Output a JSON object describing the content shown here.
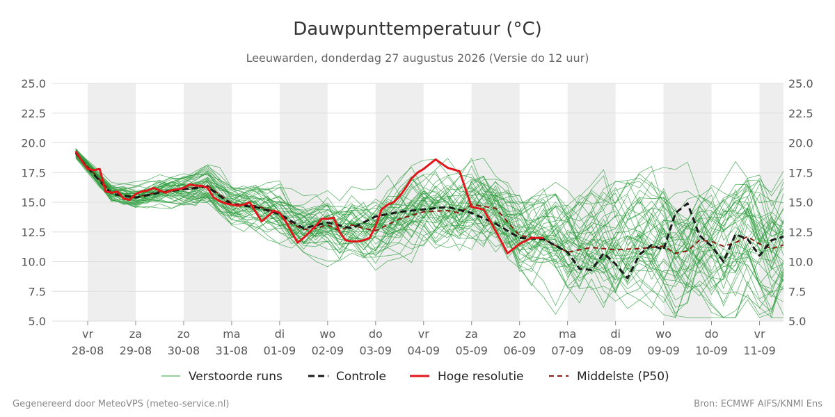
{
  "chart_data": {
    "type": "line",
    "title": "Dauwpunttemperatuur (°C)",
    "subtitle": "Leeuwarden, donderdag 27 augustus 2026 (Versie do 12 uur)",
    "ylim": [
      5.0,
      25.0
    ],
    "y_ticks": [
      "25.0",
      "22.5",
      "20.0",
      "17.5",
      "15.0",
      "12.5",
      "10.0",
      "7.5",
      "5.0"
    ],
    "x_range_days": [
      -0.74,
      14.5
    ],
    "x_ticks": [
      {
        "day": "vr",
        "date": "28-08"
      },
      {
        "day": "za",
        "date": "29-08"
      },
      {
        "day": "zo",
        "date": "30-08"
      },
      {
        "day": "ma",
        "date": "31-08"
      },
      {
        "day": "di",
        "date": "01-09"
      },
      {
        "day": "wo",
        "date": "02-09"
      },
      {
        "day": "do",
        "date": "03-09"
      },
      {
        "day": "vr",
        "date": "04-09"
      },
      {
        "day": "za",
        "date": "05-09"
      },
      {
        "day": "zo",
        "date": "06-09"
      },
      {
        "day": "ma",
        "date": "07-09"
      },
      {
        "day": "di",
        "date": "08-09"
      },
      {
        "day": "wo",
        "date": "09-09"
      },
      {
        "day": "do",
        "date": "10-09"
      },
      {
        "day": "vr",
        "date": "11-09"
      }
    ],
    "weekend_bands": [
      [
        0,
        1
      ],
      [
        2,
        3
      ],
      [
        4,
        5
      ],
      [
        6,
        7
      ],
      [
        8,
        9
      ],
      [
        10,
        11
      ],
      [
        12,
        13
      ],
      [
        14,
        15
      ]
    ],
    "grid": true,
    "legend_position": "bottom",
    "legend": [
      "Verstoorde runs",
      "Controle",
      "Hoge resolutie",
      "Middelste (P50)"
    ],
    "colors": {
      "ensemble": "#2e9e3e",
      "control": "#1a1a1a",
      "high_res": "#e0161b",
      "median": "#8b1a12",
      "band": "#eeeeee",
      "grid": "#dddddd"
    },
    "ensemble_member_count": 50,
    "series": [
      {
        "name": "Hoge resolutie",
        "x": [
          -0.25,
          -0.125,
          0,
          0.125,
          0.25,
          0.375,
          0.5,
          0.625,
          0.75,
          0.875,
          1,
          1.125,
          1.25,
          1.375,
          1.5,
          1.625,
          1.75,
          1.875,
          2,
          2.125,
          2.25,
          2.375,
          2.5,
          2.625,
          2.75,
          2.875,
          3,
          3.125,
          3.25,
          3.375,
          3.5,
          3.625,
          3.75,
          3.875,
          4,
          4.125,
          4.25,
          4.375,
          4.5,
          4.625,
          4.75,
          4.875,
          5,
          5.125,
          5.25,
          5.375,
          5.5,
          5.625,
          5.75,
          5.875,
          6,
          6.125,
          6.25,
          6.375,
          6.5,
          6.625,
          6.75,
          6.875,
          7,
          7.25,
          7.5,
          7.75,
          8,
          8.25,
          8.5,
          8.75,
          9,
          9.25,
          9.5
        ],
        "values": [
          19.3,
          18.5,
          17.8,
          17.7,
          17.8,
          15.9,
          15.8,
          15.9,
          15.3,
          15.2,
          15.7,
          15.9,
          16.0,
          16.2,
          16.0,
          15.8,
          16.0,
          16.1,
          16.2,
          16.5,
          16.4,
          16.4,
          16.2,
          15.4,
          15.1,
          14.9,
          14.8,
          14.7,
          14.8,
          15.0,
          14.2,
          13.4,
          13.8,
          14.3,
          14.1,
          13.4,
          12.5,
          11.6,
          12.0,
          12.5,
          13.0,
          13.6,
          13.6,
          13.7,
          12.5,
          11.8,
          11.7,
          11.7,
          11.8,
          12.0,
          13.0,
          14.4,
          14.8,
          15.0,
          15.5,
          16.2,
          17.0,
          17.5,
          17.8,
          18.6,
          17.9,
          17.6,
          14.6,
          14.4,
          12.6,
          10.7,
          11.5,
          12.0,
          12.0
        ]
      },
      {
        "name": "Controle",
        "x": [
          -0.25,
          0,
          0.5,
          1,
          1.5,
          2,
          2.5,
          3,
          3.5,
          4,
          4.5,
          5,
          5.5,
          6,
          6.5,
          7,
          7.5,
          8,
          8.5,
          9,
          9.5,
          10,
          10.25,
          10.5,
          10.75,
          11,
          11.25,
          11.5,
          11.75,
          12,
          12.25,
          12.5,
          12.75,
          13,
          13.25,
          13.5,
          13.75,
          14,
          14.25,
          14.5
        ],
        "values": [
          19.2,
          17.9,
          15.7,
          15.4,
          15.8,
          16.1,
          16.3,
          14.8,
          14.6,
          14.0,
          12.8,
          13.3,
          12.8,
          13.8,
          14.2,
          14.4,
          14.6,
          14.1,
          13.2,
          12.0,
          11.9,
          10.8,
          9.4,
          9.3,
          10.7,
          9.8,
          8.6,
          10.6,
          11.4,
          11.0,
          14.1,
          14.9,
          12.2,
          11.3,
          10.0,
          12.3,
          11.9,
          10.5,
          11.8,
          12.1
        ]
      },
      {
        "name": "Middelste (P50)",
        "x": [
          -0.25,
          0,
          0.5,
          1,
          1.5,
          2,
          2.5,
          3,
          3.5,
          4,
          4.25,
          4.5,
          4.75,
          5,
          5.25,
          5.5,
          5.75,
          6,
          6.5,
          7,
          7.5,
          7.75,
          8,
          8.5,
          9,
          9.5,
          10,
          10.5,
          11,
          11.5,
          12,
          12.25,
          12.5,
          12.75,
          13,
          13.25,
          13.5,
          13.75,
          14,
          14.25,
          14.5
        ],
        "values": [
          19.1,
          18.0,
          15.8,
          15.4,
          15.9,
          16.1,
          16.4,
          14.9,
          14.7,
          14.1,
          13.2,
          12.7,
          12.8,
          13.1,
          12.6,
          13.1,
          12.8,
          12.6,
          13.6,
          14.2,
          14.3,
          14.1,
          14.8,
          14.5,
          12.2,
          11.9,
          10.8,
          11.2,
          11.0,
          11.1,
          11.3,
          10.7,
          10.9,
          11.8,
          11.7,
          11.3,
          11.6,
          12.1,
          11.5,
          11.1,
          11.4
        ]
      }
    ]
  },
  "footer": {
    "left": "Gegenereerd door MeteoVPS (meteo-service.nl)",
    "right": "Bron: ECMWF AIFS/KNMI Ens"
  }
}
